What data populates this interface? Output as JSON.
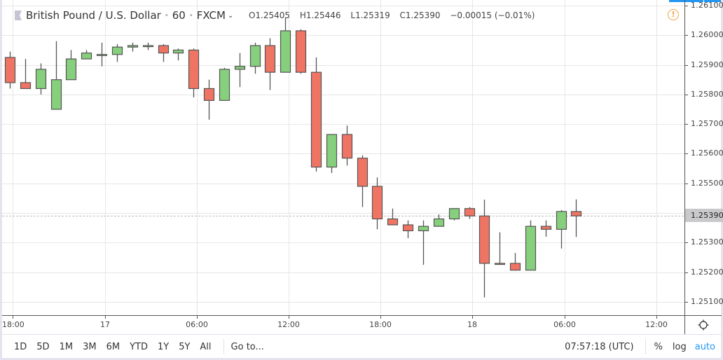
{
  "header": {
    "symbol": "British Pound / U.S. Dollar",
    "interval": "60",
    "exchange": "FXCM",
    "ohlc": {
      "open": "O1.25405",
      "high": "H1.25446",
      "low": "L1.25319",
      "close": "C1.25390",
      "change": "−0.00015 (−0.01%)"
    }
  },
  "colors": {
    "up": "#86cf7c",
    "down": "#ef7464",
    "wick": "#555555",
    "grid": "#e6e6e6",
    "accent": "#2196f3",
    "alert": "#f7a045"
  },
  "price_axis": {
    "labels": [
      "1.26100",
      "1.26000",
      "1.25900",
      "1.25800",
      "1.25700",
      "1.25600",
      "1.25500",
      "1.25300",
      "1.25200",
      "1.25100"
    ],
    "last_price": "1.25390"
  },
  "time_axis": {
    "labels": [
      "18:00",
      "17",
      "06:00",
      "12:00",
      "18:00",
      "18",
      "06:00",
      "12:00"
    ]
  },
  "bottom_bar": {
    "ranges": [
      "1D",
      "5D",
      "1M",
      "3M",
      "6M",
      "YTD",
      "1Y",
      "5Y",
      "All"
    ],
    "goto": "Go to...",
    "clock": "07:57:18 (UTC)",
    "percent": "%",
    "log": "log",
    "auto": "auto"
  },
  "chart_data": {
    "type": "candlestick",
    "title": "British Pound / U.S. Dollar · 60 · FXCM",
    "xlabel": "",
    "ylabel": "",
    "ylim": [
      1.2508,
      1.2612
    ],
    "grid": true,
    "x_ticks": [
      "18:00",
      "17",
      "06:00",
      "12:00",
      "18:00",
      "18",
      "06:00",
      "12:00"
    ],
    "y_ticks": [
      1.261,
      1.26,
      1.259,
      1.258,
      1.257,
      1.256,
      1.255,
      1.254,
      1.253,
      1.252,
      1.251
    ],
    "last_price": 1.2539,
    "candles": [
      {
        "o": 1.25925,
        "h": 1.25945,
        "l": 1.2582,
        "c": 1.2584
      },
      {
        "o": 1.2584,
        "h": 1.2592,
        "l": 1.2582,
        "c": 1.2582
      },
      {
        "o": 1.2582,
        "h": 1.25905,
        "l": 1.258,
        "c": 1.25885
      },
      {
        "o": 1.2575,
        "h": 1.2598,
        "l": 1.2575,
        "c": 1.2585
      },
      {
        "o": 1.2585,
        "h": 1.2595,
        "l": 1.2585,
        "c": 1.2592
      },
      {
        "o": 1.2592,
        "h": 1.2595,
        "l": 1.2592,
        "c": 1.2594
      },
      {
        "o": 1.25935,
        "h": 1.25975,
        "l": 1.25895,
        "c": 1.25935
      },
      {
        "o": 1.25935,
        "h": 1.2597,
        "l": 1.2591,
        "c": 1.2596
      },
      {
        "o": 1.2596,
        "h": 1.25975,
        "l": 1.25945,
        "c": 1.25965
      },
      {
        "o": 1.25965,
        "h": 1.25975,
        "l": 1.2595,
        "c": 1.25965
      },
      {
        "o": 1.25965,
        "h": 1.2597,
        "l": 1.2591,
        "c": 1.2594
      },
      {
        "o": 1.2594,
        "h": 1.25955,
        "l": 1.25915,
        "c": 1.2595
      },
      {
        "o": 1.2595,
        "h": 1.25955,
        "l": 1.2579,
        "c": 1.2582
      },
      {
        "o": 1.2582,
        "h": 1.2585,
        "l": 1.25715,
        "c": 1.2578
      },
      {
        "o": 1.2578,
        "h": 1.2589,
        "l": 1.2578,
        "c": 1.25885
      },
      {
        "o": 1.25885,
        "h": 1.2594,
        "l": 1.25825,
        "c": 1.25895
      },
      {
        "o": 1.25895,
        "h": 1.25975,
        "l": 1.2587,
        "c": 1.25965
      },
      {
        "o": 1.25965,
        "h": 1.2599,
        "l": 1.25815,
        "c": 1.25875
      },
      {
        "o": 1.25875,
        "h": 1.2606,
        "l": 1.25875,
        "c": 1.26015
      },
      {
        "o": 1.26015,
        "h": 1.2602,
        "l": 1.2587,
        "c": 1.25875
      },
      {
        "o": 1.25875,
        "h": 1.25925,
        "l": 1.2554,
        "c": 1.25555
      },
      {
        "o": 1.25555,
        "h": 1.25665,
        "l": 1.25535,
        "c": 1.25665
      },
      {
        "o": 1.25665,
        "h": 1.25695,
        "l": 1.2556,
        "c": 1.25585
      },
      {
        "o": 1.25585,
        "h": 1.25595,
        "l": 1.2542,
        "c": 1.2549
      },
      {
        "o": 1.2549,
        "h": 1.2552,
        "l": 1.25345,
        "c": 1.2538
      },
      {
        "o": 1.2538,
        "h": 1.25415,
        "l": 1.2536,
        "c": 1.2536
      },
      {
        "o": 1.2536,
        "h": 1.25375,
        "l": 1.25315,
        "c": 1.2534
      },
      {
        "o": 1.2534,
        "h": 1.25375,
        "l": 1.25225,
        "c": 1.25355
      },
      {
        "o": 1.25355,
        "h": 1.25395,
        "l": 1.25355,
        "c": 1.2538
      },
      {
        "o": 1.2538,
        "h": 1.25415,
        "l": 1.25375,
        "c": 1.25415
      },
      {
        "o": 1.25415,
        "h": 1.2542,
        "l": 1.2538,
        "c": 1.2539
      },
      {
        "o": 1.2539,
        "h": 1.25445,
        "l": 1.25115,
        "c": 1.2523
      },
      {
        "o": 1.2523,
        "h": 1.25335,
        "l": 1.25225,
        "c": 1.25228
      },
      {
        "o": 1.2523,
        "h": 1.25265,
        "l": 1.25205,
        "c": 1.25207
      },
      {
        "o": 1.25207,
        "h": 1.25375,
        "l": 1.25207,
        "c": 1.25355
      },
      {
        "o": 1.25355,
        "h": 1.25375,
        "l": 1.2532,
        "c": 1.25345
      },
      {
        "o": 1.25345,
        "h": 1.2541,
        "l": 1.2528,
        "c": 1.25405
      },
      {
        "o": 1.25405,
        "h": 1.25446,
        "l": 1.25319,
        "c": 1.2539
      }
    ]
  }
}
